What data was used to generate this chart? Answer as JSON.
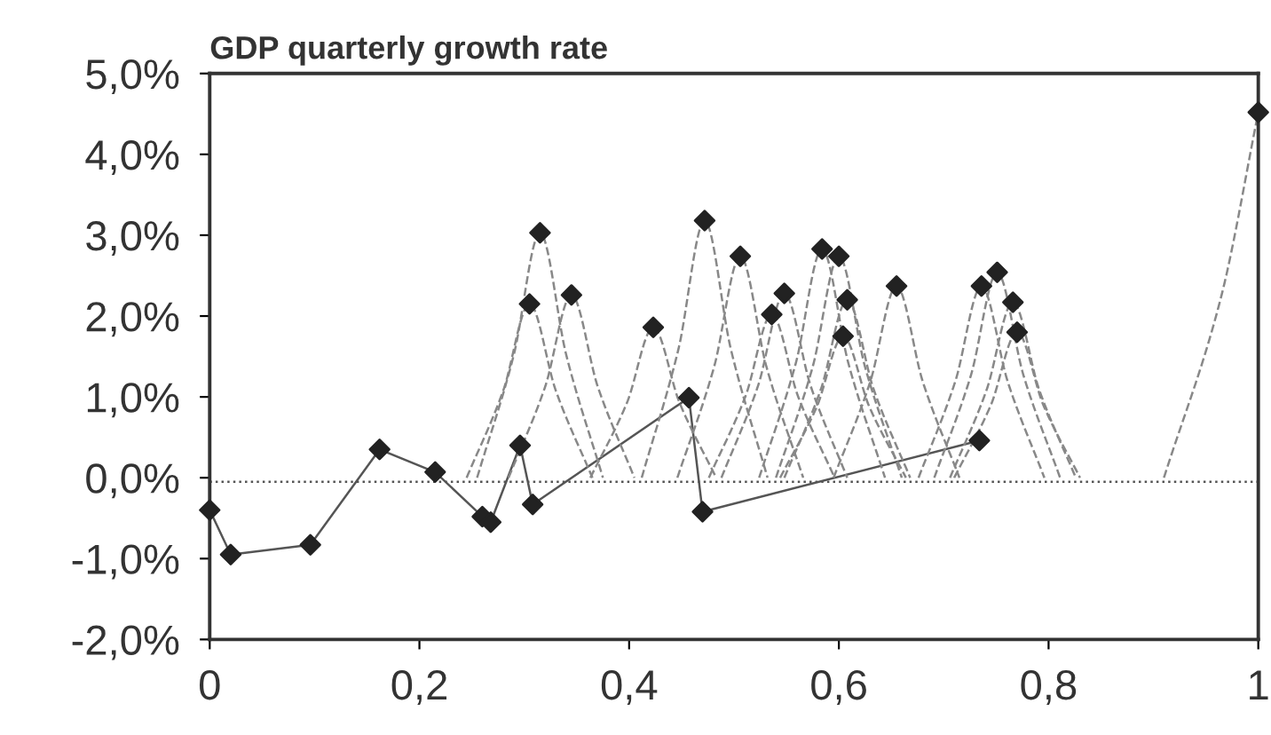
{
  "chart_data": {
    "type": "line",
    "title": "GDP quarterly growth rate",
    "xlim": [
      0,
      1
    ],
    "ylim": [
      -2,
      5
    ],
    "xticks": [
      0,
      {
        "value": 0.2,
        "label": "0,2"
      },
      {
        "value": 0.4,
        "label": "0,4"
      },
      {
        "value": 0.6,
        "label": "0,6"
      },
      {
        "value": 0.8,
        "label": "0,8"
      },
      1
    ],
    "yticks": [
      {
        "value": -2,
        "label": "-2,0%"
      },
      {
        "value": -1,
        "label": "-1,0%"
      },
      {
        "value": 0,
        "label": "0,0%"
      },
      {
        "value": 1,
        "label": "1,0%"
      },
      {
        "value": 2,
        "label": "2,0%"
      },
      {
        "value": 3,
        "label": "3,0%"
      },
      {
        "value": 4,
        "label": "4,0%"
      },
      {
        "value": 5,
        "label": "5,0%"
      }
    ],
    "grid": false,
    "ref_lines": [
      {
        "axis": "y",
        "value": -0.05,
        "line_style": "dotted",
        "color": "#555555"
      }
    ],
    "series": [
      {
        "line_style": "solid",
        "marker": "none",
        "color": "#555555",
        "x": [
          0,
          0.02,
          0.096,
          0.162,
          0.215,
          0.26,
          0.268,
          0.296,
          0.308,
          0.457,
          0.47,
          0.734
        ],
        "values": [
          -0.4,
          -0.95,
          -0.83,
          0.35,
          0.07,
          -0.48,
          -0.55,
          0.4,
          -0.33,
          0.99,
          -0.42,
          0.46
        ]
      },
      {
        "type": "line",
        "line_style": "dashed",
        "marker": "none",
        "color": "#888888",
        "x": [
          0.245,
          0.28,
          0.305,
          0.33,
          0.365
        ],
        "values": [
          0,
          1.08,
          2.15,
          1.08,
          0
        ]
      },
      {
        "type": "line",
        "line_style": "dashed",
        "marker": "none",
        "color": "#888888",
        "x": [
          0.255,
          0.29,
          0.315,
          0.34,
          0.375
        ],
        "values": [
          0,
          1.52,
          3.03,
          1.52,
          0
        ]
      },
      {
        "type": "line",
        "line_style": "dashed",
        "marker": "none",
        "color": "#888888",
        "x": [
          0.285,
          0.32,
          0.345,
          0.37,
          0.405
        ],
        "values": [
          0,
          1.13,
          2.26,
          1.13,
          0
        ]
      },
      {
        "type": "line",
        "line_style": "dashed",
        "marker": "none",
        "color": "#888888",
        "x": [
          0.363,
          0.398,
          0.423,
          0.448,
          0.483
        ],
        "values": [
          0,
          0.93,
          1.86,
          0.93,
          0
        ]
      },
      {
        "type": "line",
        "line_style": "dashed",
        "marker": "none",
        "color": "#888888",
        "x": [
          0.412,
          0.447,
          0.472,
          0.497,
          0.532
        ],
        "values": [
          0,
          1.59,
          3.18,
          1.59,
          0
        ]
      },
      {
        "type": "line",
        "line_style": "dashed",
        "marker": "none",
        "color": "#888888",
        "x": [
          0.446,
          0.481,
          0.506,
          0.531,
          0.566
        ],
        "values": [
          0,
          1.37,
          2.74,
          1.37,
          0
        ]
      },
      {
        "type": "line",
        "line_style": "dashed",
        "marker": "none",
        "color": "#888888",
        "x": [
          0.476,
          0.511,
          0.536,
          0.561,
          0.596
        ],
        "values": [
          0,
          1.01,
          2.02,
          1.01,
          0
        ]
      },
      {
        "type": "line",
        "line_style": "dashed",
        "marker": "none",
        "color": "#888888",
        "x": [
          0.488,
          0.523,
          0.548,
          0.573,
          0.608
        ],
        "values": [
          0,
          1.14,
          2.28,
          1.14,
          0
        ]
      },
      {
        "type": "line",
        "line_style": "dashed",
        "marker": "none",
        "color": "#888888",
        "x": [
          0.524,
          0.559,
          0.584,
          0.609,
          0.644
        ],
        "values": [
          0,
          1.42,
          2.83,
          1.42,
          0
        ]
      },
      {
        "type": "line",
        "line_style": "dashed",
        "marker": "none",
        "color": "#888888",
        "x": [
          0.54,
          0.575,
          0.6,
          0.625,
          0.66
        ],
        "values": [
          0,
          1.37,
          2.74,
          1.37,
          0
        ]
      },
      {
        "type": "line",
        "line_style": "dashed",
        "marker": "none",
        "color": "#888888",
        "x": [
          0.548,
          0.583,
          0.608,
          0.633,
          0.668
        ],
        "values": [
          0,
          1.1,
          2.2,
          1.1,
          0
        ]
      },
      {
        "type": "line",
        "line_style": "dashed",
        "marker": "none",
        "color": "#888888",
        "x": [
          0.544,
          0.579,
          0.604,
          0.629,
          0.664
        ],
        "values": [
          0,
          0.88,
          1.75,
          0.88,
          0
        ]
      },
      {
        "type": "line",
        "line_style": "dashed",
        "marker": "none",
        "color": "#888888",
        "x": [
          0.595,
          0.63,
          0.655,
          0.68,
          0.715
        ],
        "values": [
          0,
          1.19,
          2.37,
          1.19,
          0
        ]
      },
      {
        "type": "line",
        "line_style": "dashed",
        "marker": "none",
        "color": "#888888",
        "x": [
          0.676,
          0.711,
          0.736,
          0.761,
          0.796
        ],
        "values": [
          0,
          1.19,
          2.37,
          1.19,
          0
        ]
      },
      {
        "type": "line",
        "line_style": "dashed",
        "marker": "none",
        "color": "#888888",
        "x": [
          0.691,
          0.726,
          0.751,
          0.776,
          0.811
        ],
        "values": [
          0,
          1.27,
          2.54,
          1.27,
          0
        ]
      },
      {
        "type": "line",
        "line_style": "dashed",
        "marker": "none",
        "color": "#888888",
        "x": [
          0.706,
          0.741,
          0.766,
          0.791,
          0.826
        ],
        "values": [
          0,
          1.09,
          2.17,
          1.09,
          0
        ]
      },
      {
        "type": "line",
        "line_style": "dashed",
        "marker": "none",
        "color": "#888888",
        "x": [
          0.71,
          0.745,
          0.77,
          0.795,
          0.83
        ],
        "values": [
          0,
          0.9,
          1.8,
          0.9,
          0
        ]
      },
      {
        "type": "line",
        "line_style": "dashed",
        "marker": "none",
        "color": "#888888",
        "x": [
          0.91,
          0.965,
          1.0
        ],
        "values": [
          0,
          2.26,
          4.52
        ]
      },
      {
        "type": "scatter",
        "marker": "diamond",
        "color": "#222222",
        "x": [
          0,
          0.02,
          0.096,
          0.162,
          0.215,
          0.26,
          0.268,
          0.296,
          0.305,
          0.315,
          0.308,
          0.345,
          0.423,
          0.457,
          0.472,
          0.47,
          0.506,
          0.536,
          0.548,
          0.584,
          0.6,
          0.608,
          0.604,
          0.655,
          0.736,
          0.751,
          0.766,
          0.77,
          0.734,
          1.0
        ],
        "values": [
          -0.4,
          -0.95,
          -0.83,
          0.35,
          0.07,
          -0.48,
          -0.55,
          0.4,
          2.15,
          3.03,
          -0.33,
          2.26,
          1.86,
          0.99,
          3.18,
          -0.42,
          2.74,
          2.02,
          2.28,
          2.83,
          2.74,
          2.2,
          1.75,
          2.37,
          2.37,
          2.54,
          2.17,
          1.8,
          0.46,
          4.52
        ]
      }
    ]
  }
}
